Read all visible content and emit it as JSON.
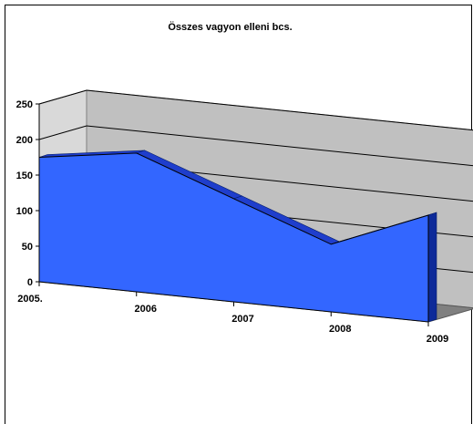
{
  "chart_data": {
    "type": "area",
    "title": "Összes vagyon elleni bcs.",
    "categories": [
      "2005.",
      "2006",
      "2007",
      "2008",
      "2009"
    ],
    "values": [
      175,
      195,
      145,
      95,
      150
    ],
    "ylim": [
      0,
      250
    ],
    "yticks": [
      "0",
      "50",
      "100",
      "150",
      "200",
      "250"
    ],
    "grid": true,
    "legend": "none",
    "three_d": true
  },
  "colors": {
    "area_front": "#3366ff",
    "area_top": "#1f3ecc",
    "area_side": "#0d2a99",
    "back_wall": "#c0c0c0",
    "left_wall": "#d9d9d9",
    "floor": "#808080"
  }
}
